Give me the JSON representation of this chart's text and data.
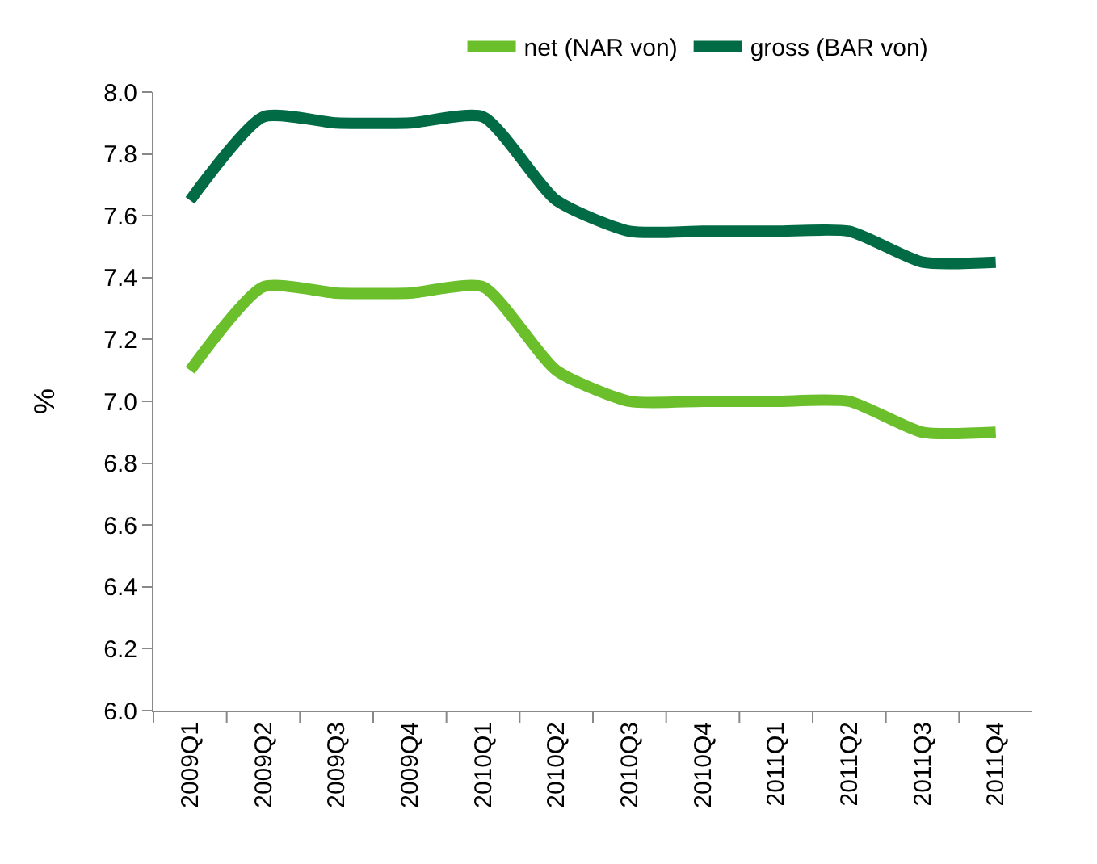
{
  "chart_data": {
    "type": "line",
    "ylabel": "%",
    "categories": [
      "2009Q1",
      "2009Q2",
      "2009Q3",
      "2009Q4",
      "2010Q1",
      "2010Q2",
      "2010Q3",
      "2010Q4",
      "2011Q1",
      "2011Q2",
      "2011Q3",
      "2011Q4"
    ],
    "series": [
      {
        "name": "net (NAR von)",
        "color": "#6abf2a",
        "values": [
          7.1,
          7.37,
          7.35,
          7.35,
          7.37,
          7.1,
          7.0,
          7.0,
          7.0,
          7.0,
          6.9,
          6.9
        ]
      },
      {
        "name": "gross (BAR von)",
        "color": "#006b45",
        "values": [
          7.65,
          7.92,
          7.9,
          7.9,
          7.92,
          7.65,
          7.55,
          7.55,
          7.55,
          7.55,
          7.45,
          7.45
        ]
      }
    ],
    "ylim": [
      6.0,
      8.0
    ],
    "yticks": [
      {
        "value": 6,
        "label": "6.0"
      },
      6.2,
      6.4,
      6.6,
      6.8,
      {
        "value": 7,
        "label": "7.0"
      },
      7.2,
      7.4,
      7.6,
      7.8,
      {
        "value": 8,
        "label": "8.0"
      }
    ],
    "grid": false,
    "legend": "top",
    "marker": "none",
    "line_style": "solid"
  }
}
